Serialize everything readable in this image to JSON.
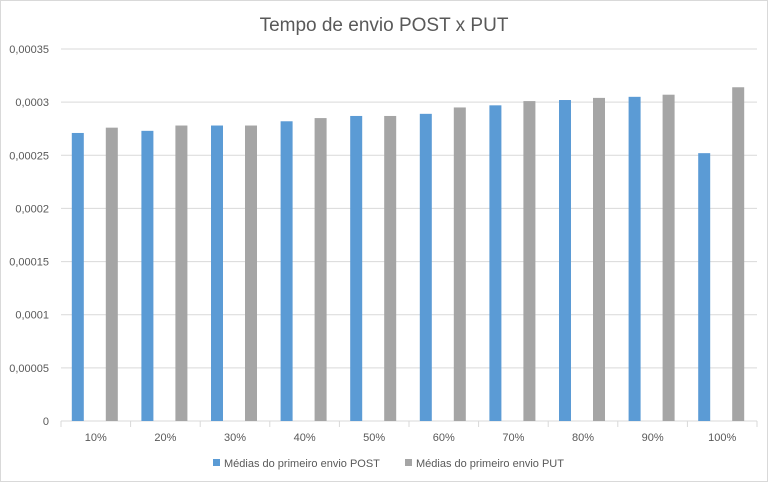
{
  "chart_data": {
    "type": "bar",
    "title": "Tempo de envio POST x PUT",
    "xlabel": "",
    "ylabel": "",
    "categories": [
      "10%",
      "20%",
      "30%",
      "40%",
      "50%",
      "60%",
      "70%",
      "80%",
      "90%",
      "100%"
    ],
    "series": [
      {
        "name": "Médias do primeiro envio POST",
        "color": "#5b9bd5",
        "values": [
          0.000271,
          0.000273,
          0.000278,
          0.000282,
          0.000287,
          0.000289,
          0.000297,
          0.000302,
          0.000305,
          0.000252
        ]
      },
      {
        "name": "Médias do primeiro envio PUT",
        "color": "#a5a5a5",
        "values": [
          0.000276,
          0.000278,
          0.000278,
          0.000285,
          0.000287,
          0.000295,
          0.000301,
          0.000304,
          0.000307,
          0.000314
        ]
      }
    ],
    "ylim": [
      0,
      0.00035
    ],
    "yticks": [
      "0",
      "0,00005",
      "0,0001",
      "0,00015",
      "0,0002",
      "0,00025",
      "0,0003",
      "0,00035"
    ],
    "grid": true,
    "legend": "bottom"
  }
}
